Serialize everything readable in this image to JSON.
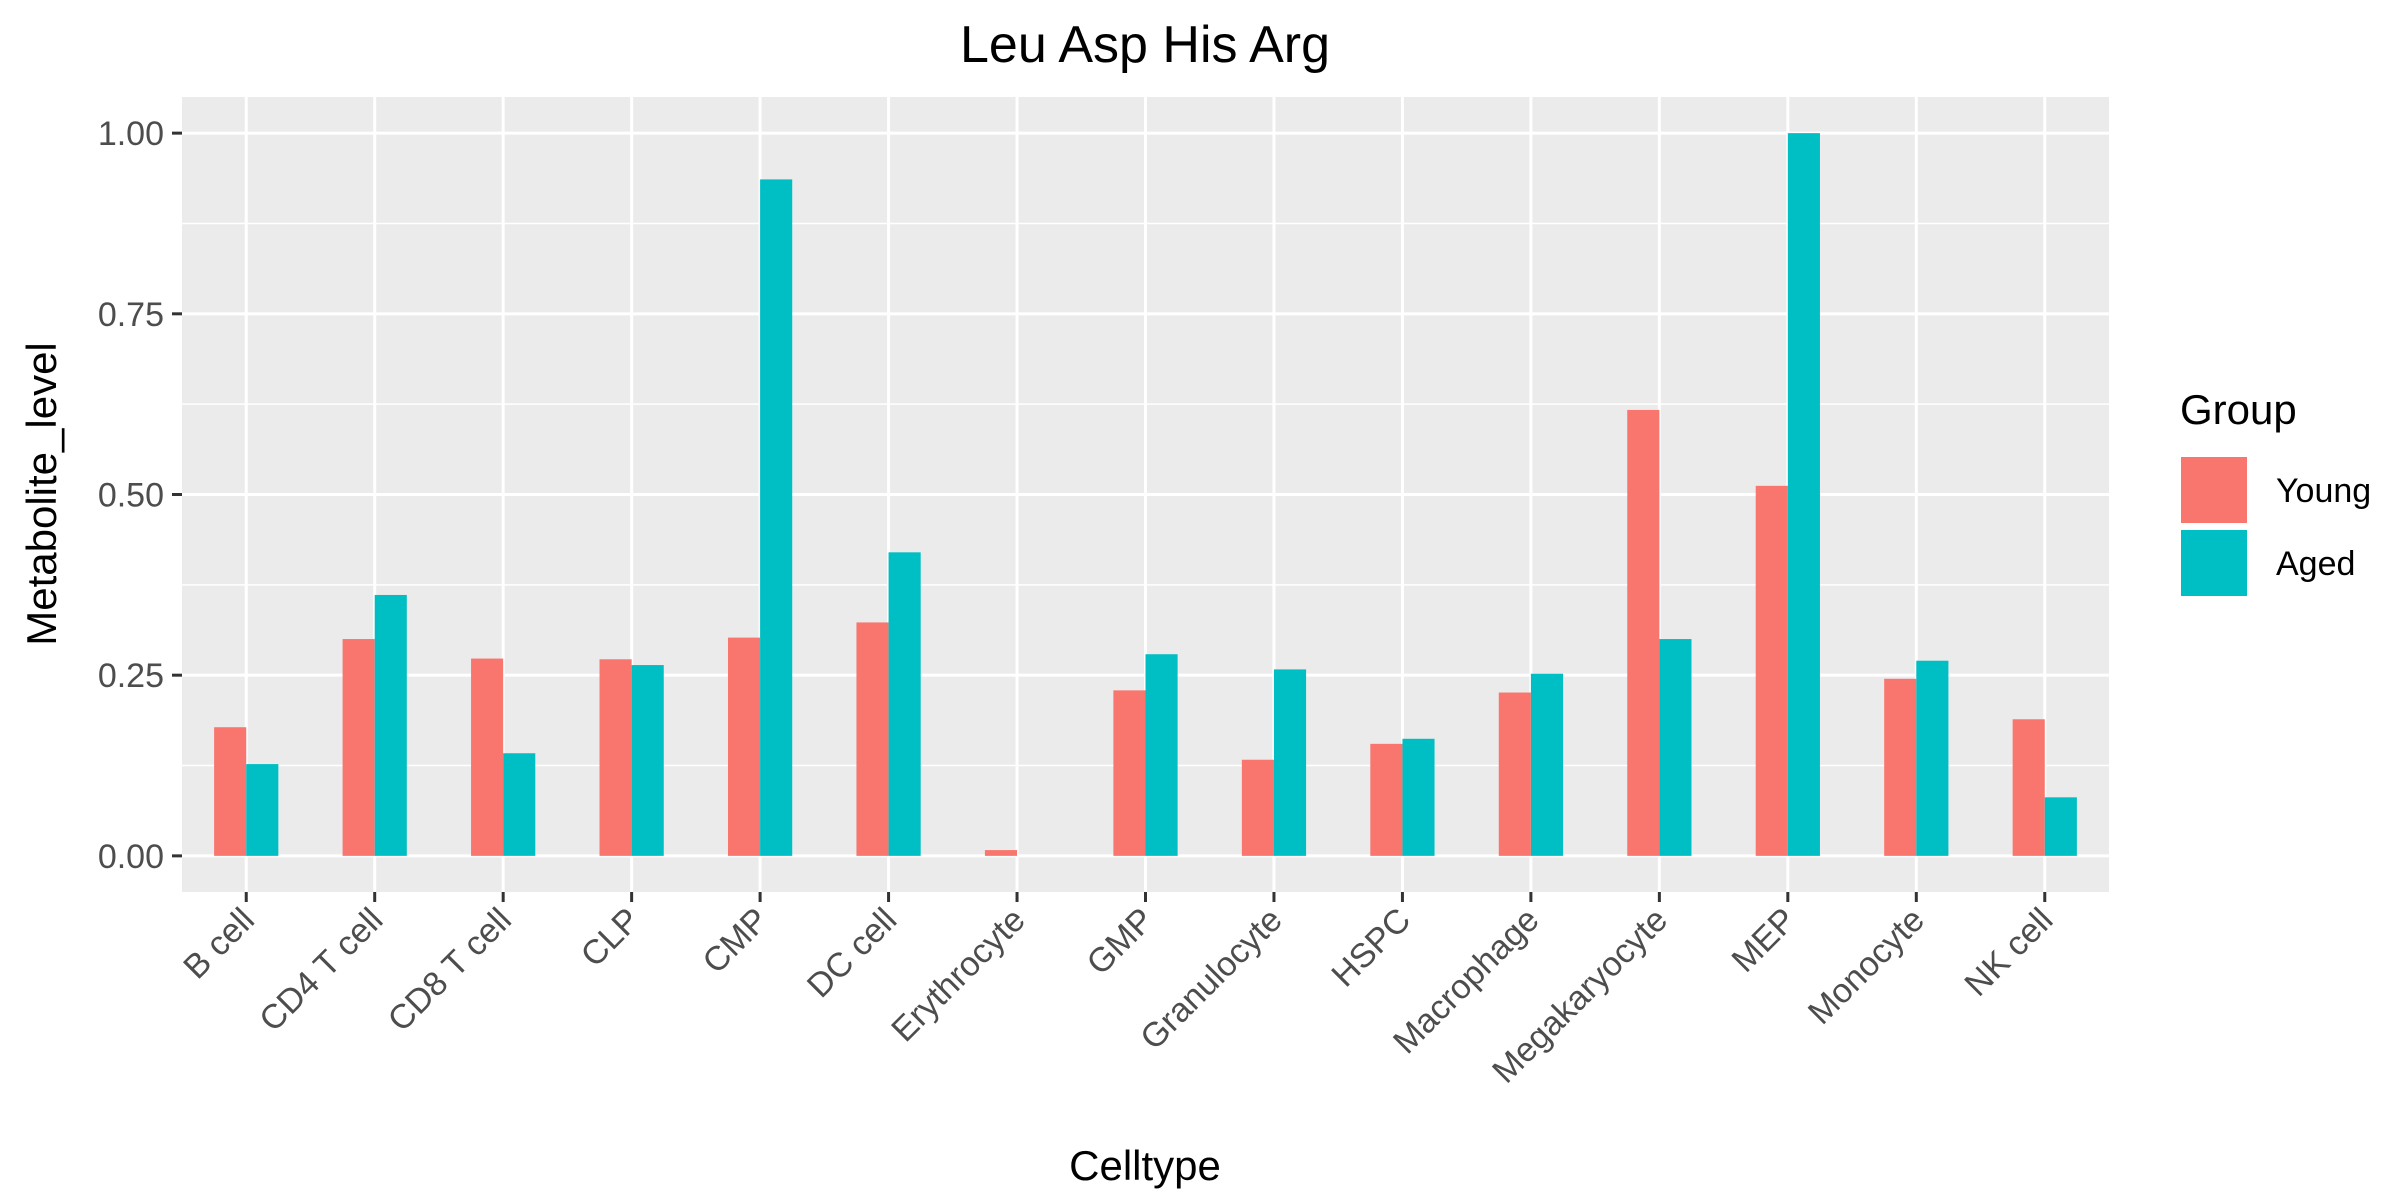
{
  "chart_data": {
    "type": "bar",
    "title": "Leu Asp His Arg",
    "xlabel": "Celltype",
    "ylabel": "Metabolite_level",
    "ylim": [
      -0.05,
      1.05
    ],
    "yticks": [
      0.0,
      0.25,
      0.5,
      0.75,
      1.0
    ],
    "ytick_labels": [
      "0.00",
      "0.25",
      "0.50",
      "0.75",
      "1.00"
    ],
    "grid": true,
    "legend": {
      "title": "Group",
      "position": "right"
    },
    "categories": [
      "B cell",
      "CD4 T cell",
      "CD8 T cell",
      "CLP",
      "CMP",
      "DC cell",
      "Erythrocyte",
      "GMP",
      "Granulocyte",
      "HSPC",
      "Macrophage",
      "Megakaryocyte",
      "MEP",
      "Monocyte",
      "NK cell"
    ],
    "series": [
      {
        "name": "Young",
        "color": "#F8766D",
        "values": [
          0.178,
          0.3,
          0.273,
          0.272,
          0.302,
          0.323,
          0.008,
          0.229,
          0.133,
          0.155,
          0.226,
          0.617,
          0.512,
          0.245,
          0.189
        ]
      },
      {
        "name": "Aged",
        "color": "#00BFC4",
        "values": [
          0.127,
          0.361,
          0.142,
          0.264,
          0.936,
          0.42,
          0.0,
          0.279,
          0.258,
          0.162,
          0.252,
          0.3,
          1.0,
          0.27,
          0.081
        ]
      }
    ]
  }
}
